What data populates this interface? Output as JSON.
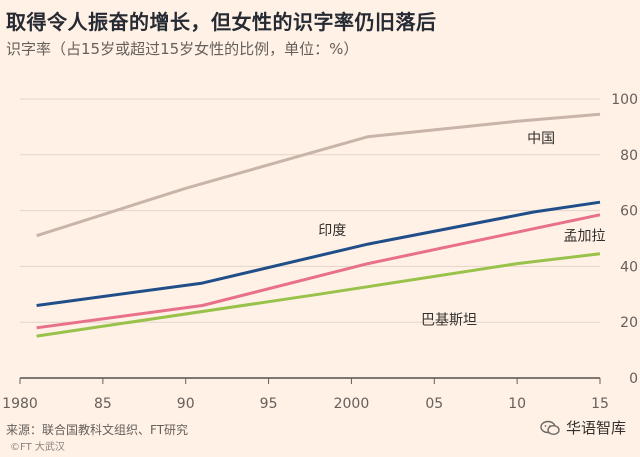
{
  "title": "取得令人振奋的增长，但女性的识字率仍旧落后",
  "subtitle": "识字率（占15岁或超过15岁女性的比例，单位：%）",
  "source": "来源：联合国教科文组织、FT研究",
  "credit": "©FT  大武汉",
  "brand": "华语智库",
  "chart_data": {
    "type": "line",
    "xlim": [
      1980,
      2015
    ],
    "ylim": [
      0,
      100
    ],
    "x_ticks": [
      1980,
      1985,
      1990,
      1995,
      2000,
      2005,
      2010,
      2015
    ],
    "x_tick_labels": [
      "1980",
      "85",
      "90",
      "95",
      "2000",
      "05",
      "10",
      "15"
    ],
    "y_ticks": [
      0,
      20,
      40,
      60,
      80,
      100
    ],
    "y_tick_labels": [
      "0",
      "20",
      "40",
      "60",
      "80",
      "100"
    ],
    "grid": true,
    "series": [
      {
        "name": "中国",
        "color": "#c8b4a8",
        "x": [
          1981,
          1990,
          2001,
          2010,
          2015
        ],
        "y": [
          51,
          68,
          86.5,
          92,
          94.5
        ]
      },
      {
        "name": "印度",
        "color": "#1f4e89",
        "x": [
          1981,
          1991,
          2001,
          2011,
          2015
        ],
        "y": [
          26,
          34,
          48,
          59.5,
          63
        ]
      },
      {
        "name": "孟加拉",
        "color": "#e8708a",
        "x": [
          1981,
          1991,
          2001,
          2011,
          2015
        ],
        "y": [
          18,
          26,
          41,
          53.5,
          58.5
        ]
      },
      {
        "name": "巴基斯坦",
        "color": "#98c24a",
        "x": [
          1981,
          1998,
          2010,
          2015
        ],
        "y": [
          15,
          30,
          41,
          44.5
        ]
      }
    ],
    "series_labels": [
      {
        "name": "中国",
        "x": 2010.6,
        "y": 86
      },
      {
        "name": "印度",
        "x": 1998,
        "y": 53
      },
      {
        "name": "孟加拉",
        "x": 2012.8,
        "y": 51
      },
      {
        "name": "巴基斯坦",
        "x": 2004.2,
        "y": 21
      }
    ]
  }
}
